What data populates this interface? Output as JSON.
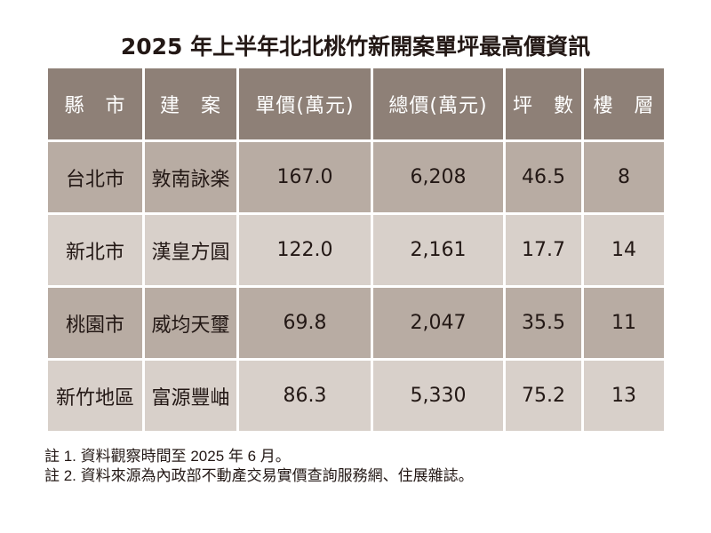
{
  "title": "2025 年上半年北北桃竹新開案單坪最高價資訊",
  "table": {
    "headers": [
      "縣　市",
      "建　案",
      "單價(萬元)",
      "總價(萬元)",
      "坪　數",
      "樓　層"
    ],
    "rows": [
      [
        "台北市",
        "敦南詠楽",
        "167.0",
        "6,208",
        "46.5",
        "8"
      ],
      [
        "新北市",
        "漢皇方圓",
        "122.0",
        "2,161",
        "17.7",
        "14"
      ],
      [
        "桃園市",
        "威均天璽",
        "69.8",
        "2,047",
        "35.5",
        "11"
      ],
      [
        "新竹地區",
        "富源豐岫",
        "86.3",
        "5,330",
        "75.2",
        "13"
      ]
    ]
  },
  "notes": [
    "註 1. 資料觀察時間至 2025 年 6 月。",
    "註 2. 資料來源為內政部不動產交易實價查詢服務網、住展雜誌。"
  ]
}
